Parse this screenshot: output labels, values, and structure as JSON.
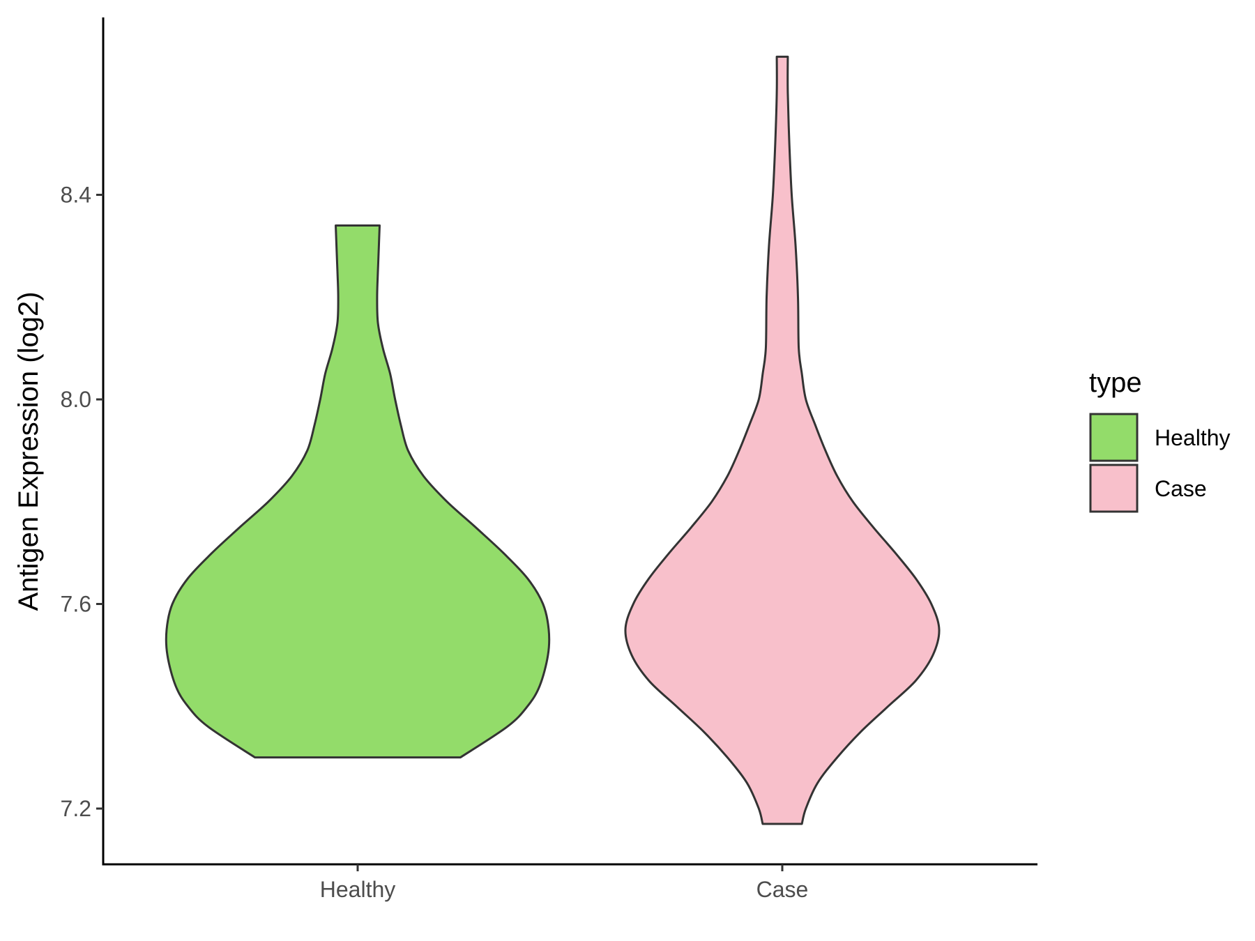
{
  "chart_data": {
    "type": "violin",
    "title": "",
    "xlabel": "",
    "ylabel": "Antigen Expression (log2)",
    "ylim": [
      7.1,
      8.75
    ],
    "y_ticks": [
      7.2,
      7.6,
      8.0,
      8.4
    ],
    "y_tick_labels": [
      "7.2",
      "7.6",
      "8.0",
      "8.4"
    ],
    "categories": [
      "Healthy",
      "Case"
    ],
    "grid": false,
    "legend": {
      "title": "type",
      "position": "right",
      "entries": [
        {
          "label": "Healthy",
          "color": "#93dc6a"
        },
        {
          "label": "Case",
          "color": "#f8c0cb"
        }
      ]
    },
    "outline_color": "#333333",
    "series": [
      {
        "name": "Healthy",
        "color": "#93dc6a",
        "min": 7.3,
        "max": 8.34,
        "density_profile": [
          [
            7.3,
            0.538
          ],
          [
            7.36,
            0.783
          ],
          [
            7.4,
            0.889
          ],
          [
            7.44,
            0.953
          ],
          [
            7.5,
            0.996
          ],
          [
            7.55,
            1.0
          ],
          [
            7.6,
            0.97
          ],
          [
            7.65,
            0.889
          ],
          [
            7.7,
            0.762
          ],
          [
            7.75,
            0.617
          ],
          [
            7.8,
            0.468
          ],
          [
            7.85,
            0.345
          ],
          [
            7.9,
            0.264
          ],
          [
            7.95,
            0.226
          ],
          [
            8.0,
            0.196
          ],
          [
            8.05,
            0.17
          ],
          [
            8.1,
            0.132
          ],
          [
            8.15,
            0.106
          ],
          [
            8.2,
            0.102
          ],
          [
            8.25,
            0.106
          ],
          [
            8.3,
            0.111
          ],
          [
            8.34,
            0.115
          ]
        ]
      },
      {
        "name": "Case",
        "color": "#f8c0cb",
        "min": 7.17,
        "max": 8.67,
        "density_profile": [
          [
            7.17,
            0.125
          ],
          [
            7.2,
            0.15
          ],
          [
            7.25,
            0.225
          ],
          [
            7.3,
            0.35
          ],
          [
            7.35,
            0.5
          ],
          [
            7.4,
            0.675
          ],
          [
            7.45,
            0.85
          ],
          [
            7.5,
            0.96
          ],
          [
            7.55,
            1.0
          ],
          [
            7.6,
            0.95
          ],
          [
            7.65,
            0.85
          ],
          [
            7.7,
            0.72
          ],
          [
            7.75,
            0.58
          ],
          [
            7.8,
            0.45
          ],
          [
            7.85,
            0.35
          ],
          [
            7.9,
            0.275
          ],
          [
            7.95,
            0.21
          ],
          [
            8.0,
            0.15
          ],
          [
            8.05,
            0.125
          ],
          [
            8.1,
            0.105
          ],
          [
            8.2,
            0.1
          ],
          [
            8.3,
            0.085
          ],
          [
            8.4,
            0.06
          ],
          [
            8.5,
            0.045
          ],
          [
            8.6,
            0.035
          ],
          [
            8.67,
            0.035
          ]
        ]
      }
    ]
  }
}
